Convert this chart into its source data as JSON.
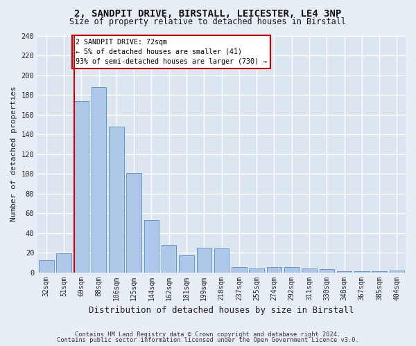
{
  "title": "2, SANDPIT DRIVE, BIRSTALL, LEICESTER, LE4 3NP",
  "subtitle": "Size of property relative to detached houses in Birstall",
  "xlabel": "Distribution of detached houses by size in Birstall",
  "ylabel": "Number of detached properties",
  "categories": [
    "32sqm",
    "51sqm",
    "69sqm",
    "88sqm",
    "106sqm",
    "125sqm",
    "144sqm",
    "162sqm",
    "181sqm",
    "199sqm",
    "218sqm",
    "237sqm",
    "255sqm",
    "274sqm",
    "292sqm",
    "311sqm",
    "330sqm",
    "348sqm",
    "367sqm",
    "385sqm",
    "404sqm"
  ],
  "values": [
    12,
    19,
    174,
    188,
    148,
    101,
    53,
    28,
    17,
    25,
    24,
    5,
    4,
    5,
    5,
    4,
    3,
    1,
    1,
    1,
    2
  ],
  "bar_color": "#aec6e8",
  "bar_edge_color": "#6699cc",
  "property_line_index": 2,
  "annotation_line1": "2 SANDPIT DRIVE: 72sqm",
  "annotation_line2": "← 5% of detached houses are smaller (41)",
  "annotation_line3": "93% of semi-detached houses are larger (730) →",
  "annotation_box_color": "#cc0000",
  "ylim": [
    0,
    240
  ],
  "yticks": [
    0,
    20,
    40,
    60,
    80,
    100,
    120,
    140,
    160,
    180,
    200,
    220,
    240
  ],
  "footer1": "Contains HM Land Registry data © Crown copyright and database right 2024.",
  "footer2": "Contains public sector information licensed under the Open Government Licence v3.0.",
  "fig_bg_color": "#e8eef5",
  "plot_bg_color": "#dce6f0"
}
